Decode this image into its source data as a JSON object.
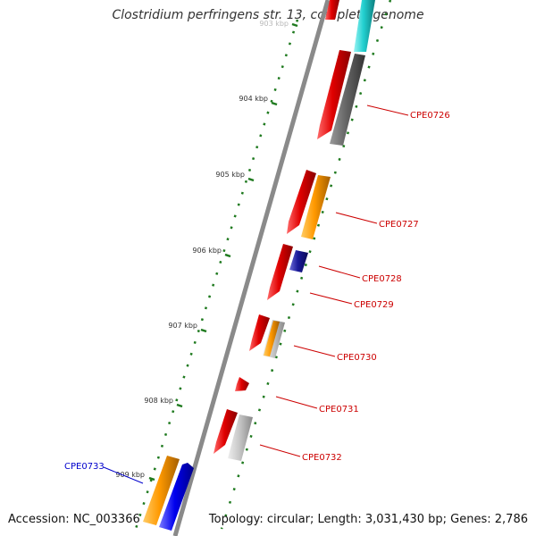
{
  "title": "Clostridium perfringens str. 13, complete genome",
  "footer": {
    "accession": "Accession: NC_003366",
    "summary": "Topology: circular; Length: 3,031,430 bp; Genes: 2,786"
  },
  "kbp_labels": [
    {
      "text": "903 kbp",
      "faded": true
    },
    {
      "text": "904 kbp"
    },
    {
      "text": "905 kbp"
    },
    {
      "text": "906 kbp"
    },
    {
      "text": "907 kbp"
    },
    {
      "text": "908 kbp"
    },
    {
      "text": "909 kbp"
    }
  ],
  "gene_labels": [
    {
      "text": "CPE0726",
      "color": "#cc0000"
    },
    {
      "text": "CPE0727",
      "color": "#cc0000"
    },
    {
      "text": "CPE0728",
      "color": "#cc0000"
    },
    {
      "text": "CPE0729",
      "color": "#cc0000"
    },
    {
      "text": "CPE0730",
      "color": "#cc0000"
    },
    {
      "text": "CPE0731",
      "color": "#cc0000"
    },
    {
      "text": "CPE0732",
      "color": "#cc0000"
    },
    {
      "text": "CPE0733",
      "color": "#0000cc"
    }
  ],
  "colors": {
    "backbone": "#8a8a8a",
    "tick": "#1f7a1f",
    "red": "#e00000",
    "orange": "#ff9900",
    "dark_gray": "#666666",
    "light_gray": "#c8c8c8",
    "cyan": "#22d0d0",
    "navy": "#1a1a99",
    "blue": "#0000ee"
  }
}
